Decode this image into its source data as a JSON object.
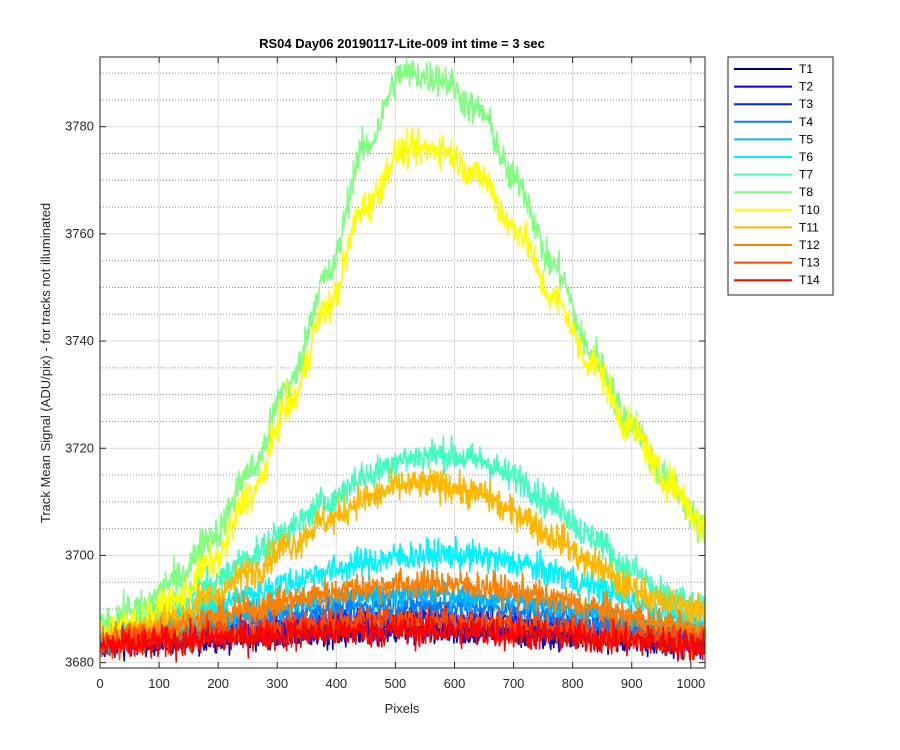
{
  "chart_data": {
    "type": "line",
    "title": "RS04 Day06 20190117-Lite-009 int time = 3 sec",
    "xlabel": "Pixels",
    "ylabel": "Track Mean Signal (ADU/pix) - for tracks not illuminated",
    "xlim": [
      0,
      1024
    ],
    "ylim": [
      3679,
      3793
    ],
    "xticks": [
      0,
      100,
      200,
      300,
      400,
      500,
      600,
      700,
      800,
      900,
      1000
    ],
    "yticks": [
      3680,
      3700,
      3720,
      3740,
      3760,
      3780
    ],
    "yminor_step": 5,
    "grid": true,
    "legend_position": "outside-top-right",
    "noise_note": "each trace shows high-frequency pixel noise around a smooth dome-shaped profile; values below are the smooth profile sampled every 64 pixels",
    "x": [
      0,
      64,
      128,
      192,
      256,
      320,
      384,
      448,
      512,
      576,
      640,
      704,
      768,
      832,
      896,
      960,
      1024
    ],
    "series": [
      {
        "name": "T1",
        "color": "#00008f",
        "noise": 1.3,
        "values": [
          3683.5,
          3683.8,
          3684.2,
          3684.6,
          3685.0,
          3685.3,
          3685.6,
          3685.8,
          3685.9,
          3685.9,
          3685.7,
          3685.4,
          3685.0,
          3684.7,
          3684.3,
          3683.9,
          3683.5
        ]
      },
      {
        "name": "T2",
        "color": "#0000d6",
        "noise": 1.3,
        "values": [
          3683.5,
          3683.9,
          3684.4,
          3684.9,
          3685.4,
          3685.8,
          3686.2,
          3686.4,
          3686.5,
          3686.5,
          3686.3,
          3686.0,
          3685.5,
          3685.1,
          3684.6,
          3684.1,
          3683.6
        ]
      },
      {
        "name": "T3",
        "color": "#0024ff",
        "noise": 1.2,
        "values": [
          3684.0,
          3684.5,
          3685.2,
          3686.0,
          3686.8,
          3687.5,
          3688.1,
          3688.5,
          3688.7,
          3688.7,
          3688.4,
          3687.9,
          3687.2,
          3686.5,
          3685.7,
          3685.0,
          3684.3
        ]
      },
      {
        "name": "T4",
        "color": "#0080ff",
        "noise": 1.2,
        "values": [
          3684.5,
          3685.2,
          3686.2,
          3687.2,
          3688.2,
          3689.2,
          3690.0,
          3690.5,
          3690.8,
          3690.8,
          3690.5,
          3689.9,
          3689.0,
          3688.0,
          3687.0,
          3686.0,
          3685.2
        ]
      },
      {
        "name": "T5",
        "color": "#00b8ff",
        "noise": 1.2,
        "values": [
          3685.0,
          3685.8,
          3686.9,
          3688.2,
          3689.5,
          3690.7,
          3691.7,
          3692.4,
          3692.8,
          3692.8,
          3692.4,
          3691.6,
          3690.5,
          3689.3,
          3688.0,
          3686.8,
          3685.8
        ]
      },
      {
        "name": "T6",
        "color": "#00f4ff",
        "noise": 1.4,
        "values": [
          3685.5,
          3686.8,
          3688.5,
          3690.6,
          3692.8,
          3695.0,
          3697.0,
          3698.7,
          3699.8,
          3700.2,
          3699.8,
          3698.6,
          3696.7,
          3694.4,
          3691.8,
          3689.3,
          3687.0
        ]
      },
      {
        "name": "T7",
        "color": "#40ffbf",
        "noise": 1.5,
        "values": [
          3686.0,
          3688.0,
          3691.0,
          3695.0,
          3699.8,
          3705.0,
          3710.0,
          3714.8,
          3718.0,
          3719.0,
          3717.8,
          3714.5,
          3709.5,
          3703.5,
          3697.5,
          3692.2,
          3689.5
        ]
      },
      {
        "name": "T8",
        "color": "#80ff80",
        "noise": 1.6,
        "values": [
          3687.5,
          3690.0,
          3695.5,
          3704.0,
          3716.0,
          3732.0,
          3752.0,
          3776.0,
          3790.0,
          3789.0,
          3783.0,
          3770.0,
          3754.0,
          3738.0,
          3725.0,
          3714.0,
          3705.0
        ]
      },
      {
        "name": "T10",
        "color": "#ffff00",
        "noise": 1.6,
        "values": [
          3686.0,
          3687.5,
          3691.5,
          3699.0,
          3711.5,
          3728.0,
          3746.0,
          3765.0,
          3775.5,
          3776.0,
          3771.0,
          3761.0,
          3748.0,
          3736.0,
          3724.0,
          3714.0,
          3705.5
        ]
      },
      {
        "name": "T11",
        "color": "#ffb800",
        "noise": 1.5,
        "values": [
          3684.5,
          3686.0,
          3688.5,
          3692.5,
          3697.0,
          3702.0,
          3706.5,
          3710.5,
          3713.0,
          3713.2,
          3711.5,
          3708.0,
          3703.5,
          3698.5,
          3694.0,
          3691.0,
          3689.5
        ]
      },
      {
        "name": "T12",
        "color": "#ff8000",
        "noise": 1.4,
        "values": [
          3684.5,
          3685.4,
          3686.7,
          3688.3,
          3690.0,
          3691.6,
          3693.0,
          3694.1,
          3694.7,
          3694.8,
          3694.3,
          3693.3,
          3691.9,
          3690.3,
          3688.6,
          3687.0,
          3685.7
        ]
      },
      {
        "name": "T13",
        "color": "#ff4800",
        "noise": 1.4,
        "values": [
          3683.5,
          3684.1,
          3684.8,
          3685.6,
          3686.3,
          3687.0,
          3687.5,
          3687.9,
          3688.0,
          3688.0,
          3687.7,
          3687.2,
          3686.6,
          3685.9,
          3685.2,
          3684.5,
          3683.9
        ]
      },
      {
        "name": "T14",
        "color": "#ff0000",
        "noise": 1.5,
        "values": [
          3683.0,
          3683.4,
          3683.9,
          3684.4,
          3684.9,
          3685.3,
          3685.6,
          3685.8,
          3685.9,
          3685.9,
          3685.7,
          3685.4,
          3685.0,
          3684.6,
          3684.1,
          3683.6,
          3683.2
        ]
      }
    ]
  }
}
